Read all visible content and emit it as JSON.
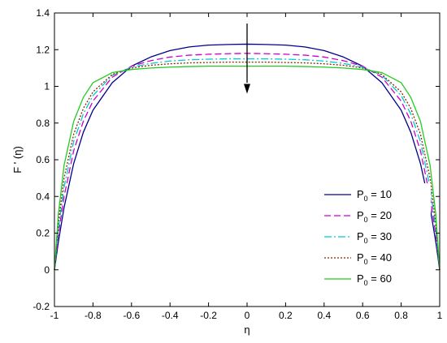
{
  "chart_data": {
    "type": "line",
    "title": "",
    "xlabel": "η",
    "ylabel": "F ' (η)",
    "xlim": [
      -1,
      1
    ],
    "ylim": [
      -0.2,
      1.4
    ],
    "xticks": [
      "-1",
      "-0.8",
      "-0.6",
      "-0.4",
      "-0.2",
      "0",
      "0.2",
      "0.4",
      "0.6",
      "0.8",
      "1"
    ],
    "yticks": [
      "-0.2",
      "0",
      "0.2",
      "0.4",
      "0.6",
      "0.8",
      "1",
      "1.2",
      "1.4"
    ],
    "grid": false,
    "legend_position": "bottom-right",
    "annotation": "arrow pointing down at η = 0 indicating increasing P0",
    "series": [
      {
        "name": "P0 = 10",
        "label_base": "P",
        "label_sub": "0",
        "label_rest": " = 10",
        "color": "#00008b",
        "dash": "",
        "x": [
          -1,
          -0.98,
          -0.95,
          -0.9,
          -0.85,
          -0.8,
          -0.7,
          -0.6,
          -0.5,
          -0.4,
          -0.3,
          -0.2,
          -0.1,
          0,
          0.1,
          0.2,
          0.3,
          0.4,
          0.5,
          0.6,
          0.7,
          0.8,
          0.85,
          0.9,
          0.95,
          0.98,
          1
        ],
        "y": [
          0,
          0.15,
          0.34,
          0.58,
          0.75,
          0.87,
          1.02,
          1.11,
          1.16,
          1.195,
          1.215,
          1.225,
          1.228,
          1.23,
          1.228,
          1.225,
          1.215,
          1.195,
          1.16,
          1.11,
          1.02,
          0.87,
          0.75,
          0.58,
          0.34,
          0.15,
          0
        ]
      },
      {
        "name": "P0 = 20",
        "label_base": "P",
        "label_sub": "0",
        "label_rest": " = 20",
        "color": "#cc00cc",
        "dash": "8,4",
        "x": [
          -1,
          -0.98,
          -0.95,
          -0.9,
          -0.85,
          -0.8,
          -0.7,
          -0.6,
          -0.5,
          -0.4,
          -0.3,
          -0.2,
          -0.1,
          0,
          0.1,
          0.2,
          0.3,
          0.4,
          0.5,
          0.6,
          0.7,
          0.8,
          0.85,
          0.9,
          0.95,
          0.98,
          1
        ],
        "y": [
          0,
          0.19,
          0.4,
          0.65,
          0.81,
          0.92,
          1.05,
          1.11,
          1.14,
          1.16,
          1.17,
          1.175,
          1.178,
          1.18,
          1.178,
          1.175,
          1.17,
          1.16,
          1.14,
          1.11,
          1.05,
          0.92,
          0.81,
          0.65,
          0.4,
          0.19,
          0
        ]
      },
      {
        "name": "P0 = 30",
        "label_base": "P",
        "label_sub": "0",
        "label_rest": " = 30",
        "color": "#00cccc",
        "dash": "9,3,2,3",
        "x": [
          -1,
          -0.98,
          -0.95,
          -0.9,
          -0.85,
          -0.8,
          -0.7,
          -0.6,
          -0.5,
          -0.4,
          -0.3,
          -0.2,
          -0.1,
          0,
          0.1,
          0.2,
          0.3,
          0.4,
          0.5,
          0.6,
          0.7,
          0.8,
          0.85,
          0.9,
          0.95,
          0.98,
          1
        ],
        "y": [
          0,
          0.22,
          0.45,
          0.7,
          0.85,
          0.95,
          1.06,
          1.105,
          1.125,
          1.138,
          1.145,
          1.148,
          1.15,
          1.15,
          1.15,
          1.148,
          1.145,
          1.138,
          1.125,
          1.105,
          1.06,
          0.95,
          0.85,
          0.7,
          0.45,
          0.22,
          0
        ]
      },
      {
        "name": "P0 = 40",
        "label_base": "P",
        "label_sub": "0",
        "label_rest": " = 40",
        "color": "#8b2500",
        "dash": "2,2",
        "x": [
          -1,
          -0.98,
          -0.95,
          -0.9,
          -0.85,
          -0.8,
          -0.7,
          -0.6,
          -0.5,
          -0.4,
          -0.3,
          -0.2,
          -0.1,
          0,
          0.1,
          0.2,
          0.3,
          0.4,
          0.5,
          0.6,
          0.7,
          0.8,
          0.85,
          0.9,
          0.95,
          0.98,
          1
        ],
        "y": [
          0,
          0.25,
          0.5,
          0.74,
          0.88,
          0.97,
          1.065,
          1.1,
          1.115,
          1.123,
          1.128,
          1.13,
          1.132,
          1.132,
          1.132,
          1.13,
          1.128,
          1.123,
          1.115,
          1.1,
          1.065,
          0.97,
          0.88,
          0.74,
          0.5,
          0.25,
          0
        ]
      },
      {
        "name": "P0 = 60",
        "label_base": "P",
        "label_sub": "0",
        "label_rest": " = 60",
        "color": "#22cc22",
        "dash": "",
        "x": [
          -1,
          -0.98,
          -0.95,
          -0.9,
          -0.85,
          -0.8,
          -0.7,
          -0.6,
          -0.5,
          -0.4,
          -0.3,
          -0.2,
          -0.1,
          0,
          0.1,
          0.2,
          0.3,
          0.4,
          0.5,
          0.6,
          0.7,
          0.8,
          0.85,
          0.9,
          0.95,
          0.98,
          1
        ],
        "y": [
          0,
          0.3,
          0.57,
          0.81,
          0.94,
          1.02,
          1.075,
          1.092,
          1.1,
          1.105,
          1.108,
          1.11,
          1.11,
          1.11,
          1.11,
          1.11,
          1.108,
          1.105,
          1.1,
          1.092,
          1.075,
          1.02,
          0.94,
          0.81,
          0.57,
          0.3,
          0
        ]
      }
    ]
  }
}
